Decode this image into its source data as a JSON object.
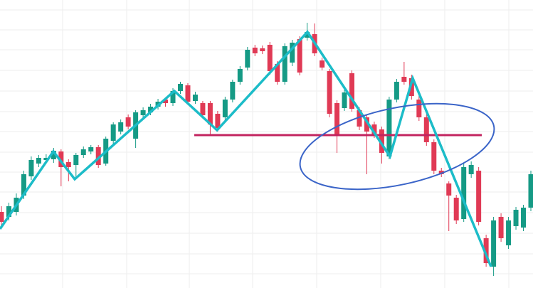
{
  "chart_data": {
    "type": "candlestick",
    "up_color": "#159a85",
    "down_color": "#e03a55",
    "ylim": [
      0,
      405
    ],
    "yticks": [
      20,
      48,
      77,
      106,
      135,
      163,
      191,
      220,
      248,
      277,
      306,
      335,
      363,
      391
    ],
    "grid": true,
    "open": [
      107,
      100,
      107,
      130,
      157,
      175,
      180,
      181,
      192,
      177,
      173,
      187,
      192,
      198,
      175,
      207,
      220,
      240,
      210,
      243,
      247,
      255,
      265,
      260,
      277,
      285,
      263,
      260,
      260,
      245,
      240,
      265,
      290,
      310,
      338,
      337,
      342,
      315,
      290,
      317,
      350,
      352,
      357,
      320,
      305,
      260,
      253,
      302,
      250,
      240,
      230,
      223,
      185,
      265,
      297,
      295,
      265,
      240,
      205,
      165,
      147,
      127,
      97,
      160,
      165,
      70,
      30,
      100,
      60,
      87,
      85,
      113
    ],
    "high": [
      115,
      120,
      133,
      165,
      185,
      187,
      188,
      197,
      195,
      181,
      190,
      199,
      201,
      201,
      213,
      233,
      237,
      244,
      250,
      254,
      259,
      266,
      268,
      281,
      290,
      288,
      276,
      263,
      263,
      249,
      269,
      293,
      312,
      339,
      342,
      341,
      346,
      319,
      344,
      349,
      354,
      373,
      372,
      324,
      308,
      264,
      280,
      306,
      254,
      244,
      234,
      227,
      269,
      294,
      318,
      300,
      270,
      244,
      209,
      169,
      150,
      131,
      175,
      178,
      170,
      75,
      100,
      105,
      100,
      114,
      117,
      165
    ],
    "low": [
      85,
      95,
      102,
      125,
      152,
      170,
      176,
      176,
      143,
      150,
      153,
      183,
      188,
      169,
      172,
      203,
      216,
      223,
      197,
      239,
      243,
      251,
      255,
      256,
      273,
      258,
      259,
      239,
      215,
      220,
      236,
      261,
      286,
      306,
      326,
      329,
      300,
      286,
      286,
      312,
      299,
      348,
      326,
      306,
      240,
      190,
      249,
      248,
      222,
      160,
      211,
      175,
      181,
      261,
      286,
      265,
      235,
      200,
      160,
      156,
      80,
      90,
      93,
      155,
      88,
      30,
      17,
      65,
      55,
      82,
      80,
      108
    ],
    "close": [
      93,
      115,
      127,
      160,
      180,
      183,
      183,
      193,
      170,
      170,
      187,
      195,
      198,
      173,
      210,
      230,
      233,
      227,
      247,
      250,
      255,
      262,
      260,
      277,
      287,
      262,
      272,
      243,
      230,
      225,
      265,
      290,
      308,
      335,
      330,
      333,
      305,
      290,
      340,
      345,
      303,
      360,
      330,
      310,
      245,
      215,
      275,
      252,
      227,
      220,
      215,
      190,
      265,
      290,
      290,
      270,
      240,
      205,
      165,
      160,
      130,
      95,
      170,
      173,
      93,
      35,
      95,
      70,
      95,
      110,
      113,
      160
    ]
  }
}
